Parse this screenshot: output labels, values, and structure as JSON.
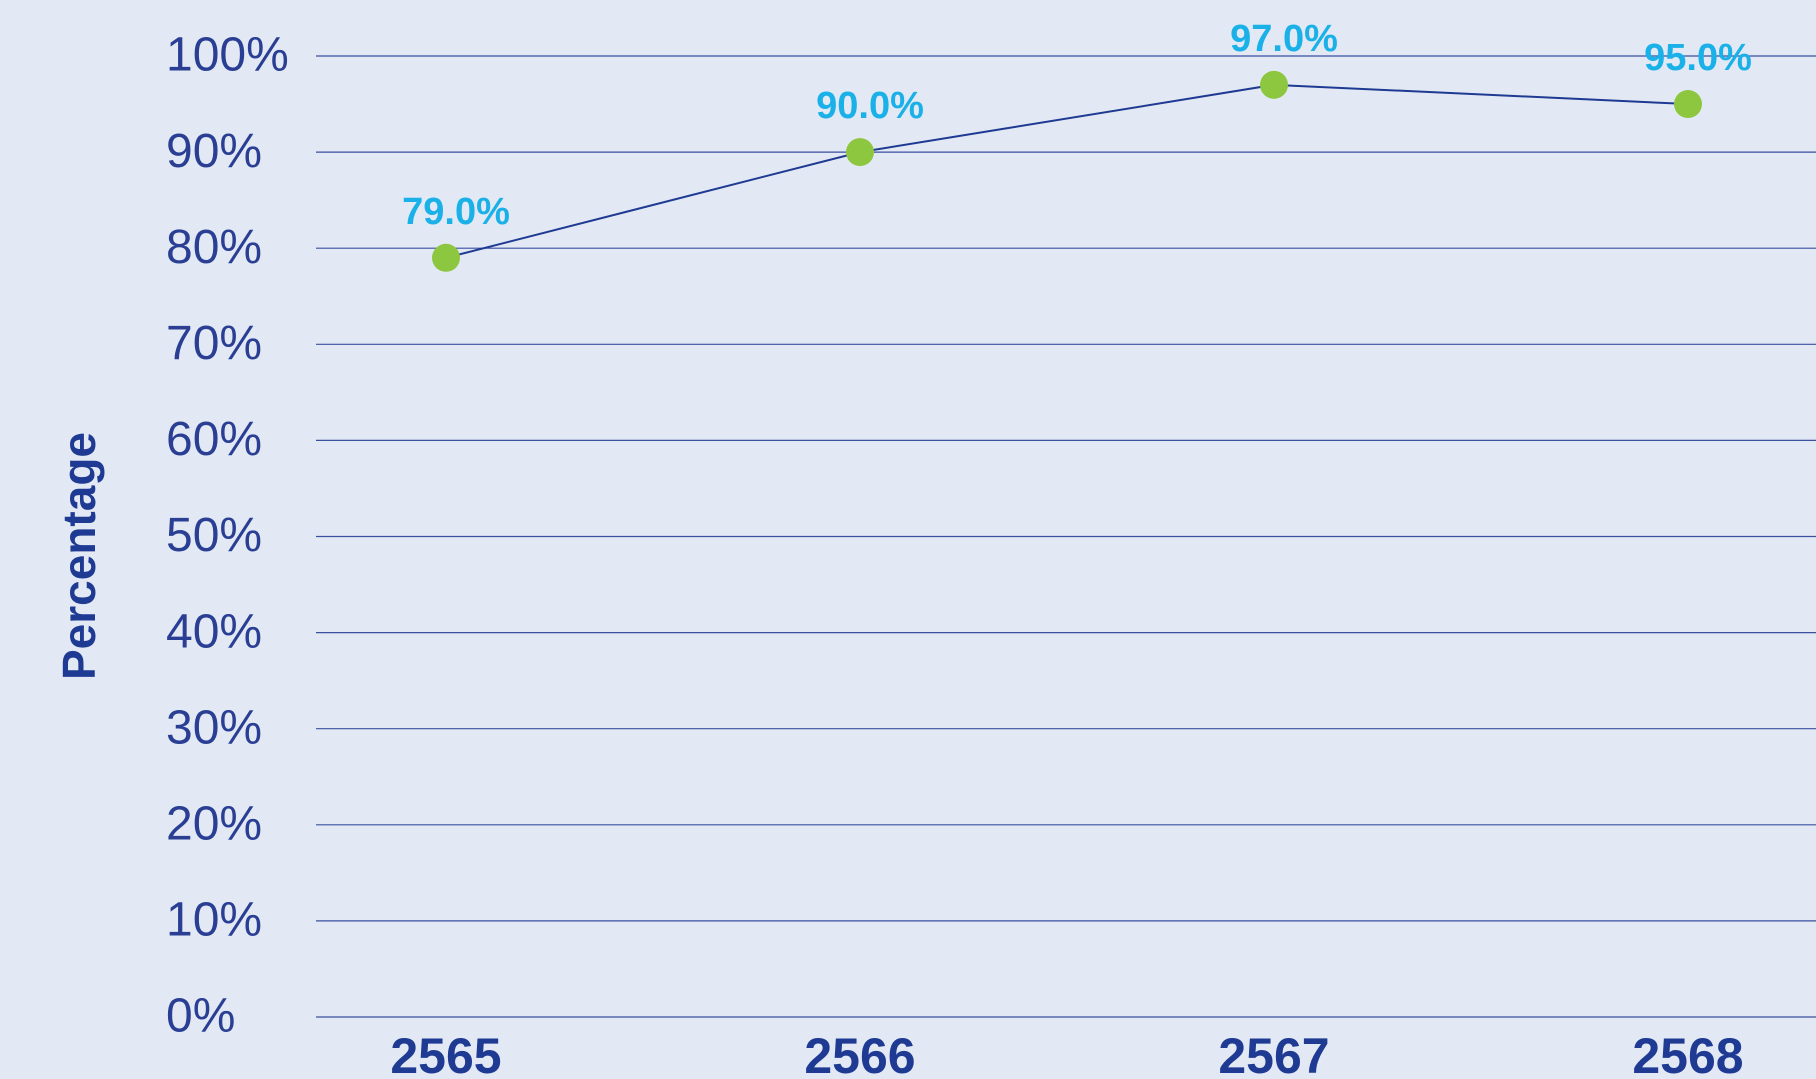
{
  "chart_data": {
    "type": "line",
    "y_label": "Percentage",
    "categories": [
      "2565",
      "2566",
      "2567",
      "2568"
    ],
    "series": [
      {
        "name": null,
        "color": "#8dc63f",
        "line_color": "#1f3a93",
        "values": [
          79,
          90,
          97,
          95
        ],
        "value_labels": [
          "79.0%",
          "90.0%",
          "97.0%",
          "95.0%"
        ]
      }
    ],
    "ylim": [
      0,
      100
    ],
    "yticks": [
      {
        "value": 0,
        "label": "0%"
      },
      {
        "value": 10,
        "label": "10%"
      },
      {
        "value": 20,
        "label": "20%"
      },
      {
        "value": 30,
        "label": "30%"
      },
      {
        "value": 40,
        "label": "40%"
      },
      {
        "value": 50,
        "label": "50%"
      },
      {
        "value": 60,
        "label": "60%"
      },
      {
        "value": 70,
        "label": "70%"
      },
      {
        "value": 80,
        "label": "80%"
      },
      {
        "value": 90,
        "label": "90%"
      },
      {
        "value": 100,
        "label": "100%"
      }
    ],
    "grid": true
  }
}
